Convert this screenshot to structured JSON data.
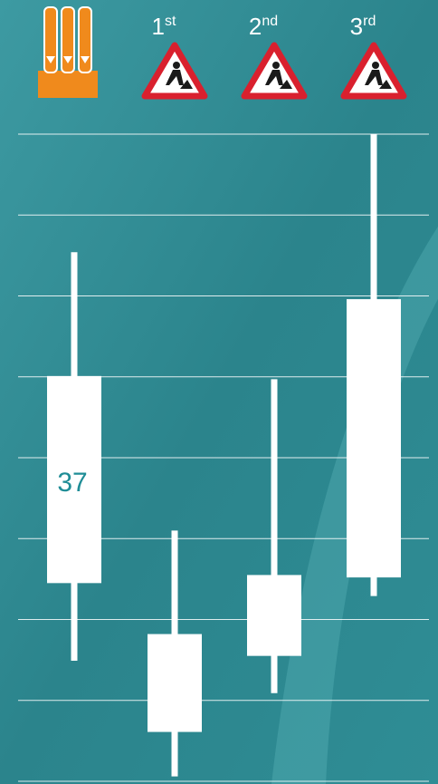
{
  "chart_data": {
    "type": "box",
    "categories": [
      null,
      "1st",
      "2nd",
      "3rd"
    ],
    "low": [
      14.9,
      0.6,
      10.9,
      22.9
    ],
    "q1": [
      24.5,
      6.1,
      15.5,
      25.2
    ],
    "q3": [
      50.1,
      18.2,
      25.5,
      59.6
    ],
    "high": [
      65.4,
      31.0,
      49.7,
      80
    ],
    "medians": [
      37,
      null,
      null,
      null
    ],
    "color": "#ffffff",
    "label_color": "#1f8d96",
    "ylim": [
      0,
      80
    ],
    "yticks": [
      0,
      10,
      20,
      30,
      40,
      50,
      60,
      70,
      80
    ],
    "grid": true
  }
}
